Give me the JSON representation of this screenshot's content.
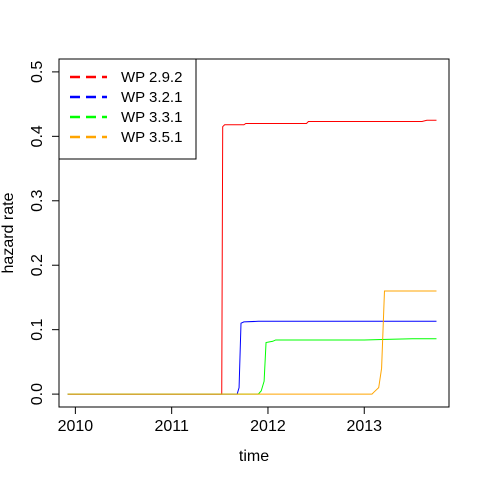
{
  "chart_data": {
    "type": "line",
    "xlabel": "time",
    "ylabel": "hazard rate",
    "xlim": [
      2009.83,
      2013.88
    ],
    "ylim": [
      -0.02,
      0.52
    ],
    "x_ticks": [
      2010,
      2011,
      2012,
      2013
    ],
    "x_tick_labels": [
      "2010",
      "2011",
      "2012",
      "2013"
    ],
    "y_ticks": [
      0.0,
      0.1,
      0.2,
      0.3,
      0.4,
      0.5
    ],
    "y_tick_labels": [
      "0.0",
      "0.1",
      "0.2",
      "0.3",
      "0.4",
      "0.5"
    ],
    "grid": false,
    "legend_position": "top-left",
    "series": [
      {
        "name": "WP 2.9.2",
        "color": "#ff0000",
        "x": [
          2009.92,
          2011.52,
          2011.53,
          2011.55,
          2011.75,
          2011.77,
          2012.0,
          2012.4,
          2012.42,
          2013.0,
          2013.6,
          2013.65,
          2013.75
        ],
        "y": [
          0.0,
          0.0,
          0.415,
          0.418,
          0.418,
          0.42,
          0.42,
          0.42,
          0.423,
          0.423,
          0.423,
          0.425,
          0.425
        ]
      },
      {
        "name": "WP 3.2.1",
        "color": "#0000ff",
        "x": [
          2009.92,
          2011.68,
          2011.7,
          2011.72,
          2011.75,
          2011.9,
          2012.0,
          2013.0,
          2013.75
        ],
        "y": [
          0.0,
          0.0,
          0.01,
          0.11,
          0.112,
          0.113,
          0.113,
          0.113,
          0.113
        ]
      },
      {
        "name": "WP 3.3.1",
        "color": "#00ff00",
        "x": [
          2009.92,
          2011.9,
          2011.93,
          2011.96,
          2011.98,
          2012.05,
          2012.08,
          2013.0,
          2013.5,
          2013.75
        ],
        "y": [
          0.0,
          0.0,
          0.005,
          0.02,
          0.08,
          0.082,
          0.084,
          0.084,
          0.086,
          0.086
        ]
      },
      {
        "name": "WP 3.5.1",
        "color": "#ffa500",
        "x": [
          2009.92,
          2013.08,
          2013.1,
          2013.15,
          2013.18,
          2013.21,
          2013.23,
          2013.75
        ],
        "y": [
          0.0,
          0.0,
          0.003,
          0.01,
          0.04,
          0.16,
          0.16,
          0.16
        ]
      }
    ]
  }
}
